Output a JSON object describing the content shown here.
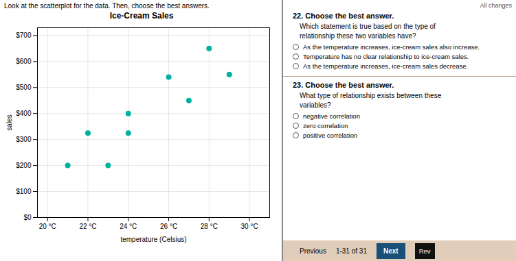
{
  "chart_data": {
    "type": "scatter",
    "title": "Ice-Cream Sales",
    "xlabel": "temperature (Celsius)",
    "ylabel": "sales",
    "x": [
      21,
      22,
      23,
      24,
      24,
      26,
      27,
      28,
      29
    ],
    "values": [
      200,
      325,
      200,
      325,
      400,
      540,
      450,
      650,
      550
    ],
    "color": "#00b0a0",
    "xlim": [
      19.5,
      31
    ],
    "ylim": [
      0,
      730
    ],
    "xticks": [
      {
        "value": 20,
        "label": "20 °C"
      },
      {
        "value": 22,
        "label": "22 °C"
      },
      {
        "value": 24,
        "label": "24 °C"
      },
      {
        "value": 26,
        "label": "26 °C"
      },
      {
        "value": 28,
        "label": "28 °C"
      },
      {
        "value": 30,
        "label": "30 °C"
      }
    ],
    "yticks": [
      {
        "value": 0,
        "label": "$0"
      },
      {
        "value": 100,
        "label": "$100"
      },
      {
        "value": 200,
        "label": "$200"
      },
      {
        "value": 300,
        "label": "$300"
      },
      {
        "value": 400,
        "label": "$400"
      },
      {
        "value": 500,
        "label": "$500"
      },
      {
        "value": 600,
        "label": "$600"
      },
      {
        "value": 700,
        "label": "$700"
      }
    ],
    "grid": true,
    "annotations": [
      "Look at the scatterplot for the data. Then, choose the best answers.",
      "All changes",
      "22. Choose the best answer.",
      "Which statement is true based on the type of\nrelationship these two variables have?",
      "As the temperature increases, ice-cream sales also increase.",
      "Temperature has no clear relationship to ice-cream sales.",
      "As the temperature increases, ice-cream sales decrease.",
      "23. Choose the best answer.",
      "What type of relationship exists between these\nvariables?",
      "negative correlation",
      "zero correlation",
      "positive correlation",
      "Previous",
      "1-31 of 31",
      "Next",
      "Rev"
    ]
  }
}
